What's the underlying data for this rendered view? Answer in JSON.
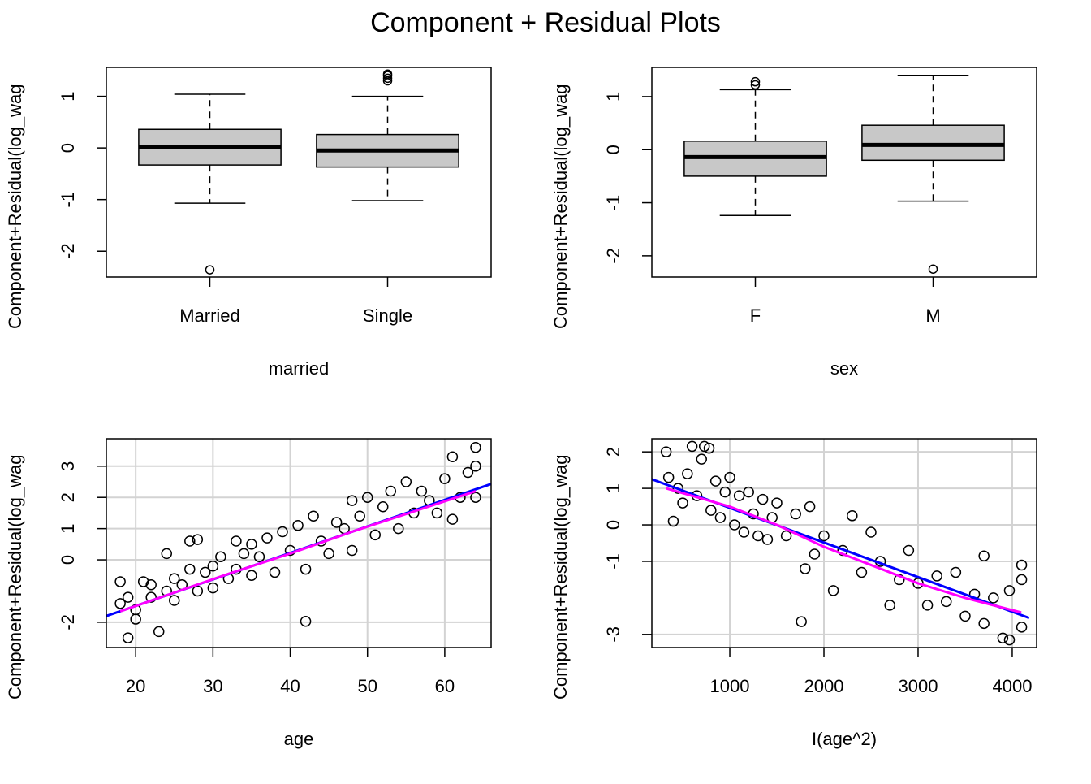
{
  "title": "Component + Residual Plots",
  "chart_data": [
    {
      "type": "box",
      "ylabel": "Component+Residual(log_wag",
      "xlabel": "married",
      "categories": [
        "Married",
        "Single"
      ],
      "fill": "#c8c8c8",
      "whisker_low": [
        -1.07,
        -1.02
      ],
      "q1": [
        -0.33,
        -0.37
      ],
      "median": [
        0.02,
        -0.05
      ],
      "q3": [
        0.36,
        0.26
      ],
      "whisker_high": [
        1.04,
        1.0
      ],
      "outliers": [
        [
          -2.36
        ],
        [
          1.3,
          1.35,
          1.4,
          1.43
        ]
      ],
      "ylim": [
        -2.5,
        1.56
      ],
      "yticks": [
        -2,
        -1,
        0,
        1
      ]
    },
    {
      "type": "box",
      "ylabel": "Component+Residual(log_wag",
      "xlabel": "sex",
      "categories": [
        "F",
        "M"
      ],
      "fill": "#c8c8c8",
      "whisker_low": [
        -1.24,
        -0.97
      ],
      "q1": [
        -0.5,
        -0.2
      ],
      "median": [
        -0.14,
        0.09
      ],
      "q3": [
        0.16,
        0.46
      ],
      "whisker_high": [
        1.13,
        1.4
      ],
      "outliers": [
        [
          1.22,
          1.28
        ],
        [
          -2.25
        ]
      ],
      "ylim": [
        -2.4,
        1.55
      ],
      "yticks": [
        -2,
        -1,
        0,
        1
      ]
    },
    {
      "type": "scatter",
      "ylabel": "Component+Residual(log_wag",
      "xlabel": "age",
      "grid": true,
      "xlim": [
        16.2,
        66
      ],
      "xticks": [
        20,
        30,
        40,
        50,
        60
      ],
      "ylim": [
        -2.81,
        3.88
      ],
      "yticks": [
        -2,
        0,
        1,
        2,
        3
      ],
      "series": [
        {
          "mode": "points",
          "color": "#000000",
          "x": [
            18,
            18,
            19,
            19,
            20,
            20,
            21,
            22,
            22,
            23,
            24,
            24,
            25,
            25,
            26,
            27,
            27,
            28,
            28,
            29,
            30,
            30,
            31,
            32,
            33,
            33,
            34,
            35,
            35,
            36,
            37,
            38,
            39,
            40,
            41,
            42,
            42,
            43,
            44,
            45,
            46,
            47,
            48,
            48,
            49,
            50,
            51,
            52,
            53,
            54,
            55,
            56,
            57,
            58,
            59,
            60,
            61,
            61,
            62,
            63,
            64,
            64,
            64
          ],
          "values": [
            -0.7,
            -1.4,
            -2.5,
            -1.2,
            -1.6,
            -1.9,
            -0.7,
            -1.2,
            -0.8,
            -2.3,
            0.2,
            -1.0,
            -0.6,
            -1.3,
            -0.8,
            0.6,
            -0.3,
            0.65,
            -1.0,
            -0.4,
            -0.9,
            -0.2,
            0.1,
            -0.6,
            0.6,
            -0.3,
            0.2,
            -0.5,
            0.5,
            0.1,
            0.7,
            -0.4,
            0.9,
            0.3,
            1.1,
            -1.97,
            -0.3,
            1.4,
            0.6,
            0.2,
            1.2,
            1.0,
            1.9,
            0.3,
            1.4,
            2.0,
            0.8,
            1.7,
            2.2,
            1.0,
            2.5,
            1.5,
            2.2,
            1.9,
            1.5,
            2.6,
            3.3,
            1.3,
            2.0,
            2.8,
            3.6,
            2.0,
            3.0
          ]
        },
        {
          "mode": "line",
          "color": "#0000ff",
          "x": [
            16.2,
            66
          ],
          "values": [
            -1.8,
            2.43
          ]
        },
        {
          "mode": "line",
          "color": "#ff00ff",
          "x": [
            18,
            25,
            32,
            40,
            48,
            56,
            64
          ],
          "values": [
            -1.65,
            -1.05,
            -0.45,
            0.2,
            0.9,
            1.55,
            2.2
          ]
        }
      ]
    },
    {
      "type": "scatter",
      "ylabel": "Component+Residual(log_wag",
      "xlabel": "I(age^2)",
      "grid": true,
      "xlim": [
        172,
        4259
      ],
      "xticks": [
        1000,
        2000,
        3000,
        4000
      ],
      "ylim": [
        -3.36,
        2.36
      ],
      "yticks": [
        -3,
        -1,
        0,
        1,
        2
      ],
      "series": [
        {
          "mode": "points",
          "color": "#000000",
          "x": [
            324,
            350,
            400,
            450,
            500,
            550,
            600,
            650,
            700,
            730,
            780,
            800,
            850,
            900,
            950,
            1000,
            1050,
            1100,
            1150,
            1200,
            1250,
            1300,
            1350,
            1400,
            1450,
            1500,
            1600,
            1700,
            1760,
            1800,
            1850,
            1900,
            2000,
            2100,
            2200,
            2300,
            2400,
            2500,
            2600,
            2700,
            2800,
            2900,
            3000,
            3100,
            3200,
            3300,
            3400,
            3500,
            3600,
            3700,
            3700,
            3800,
            3900,
            3970,
            3970,
            4100,
            4100,
            4100
          ],
          "values": [
            2.0,
            1.3,
            0.1,
            1.0,
            0.6,
            1.4,
            2.15,
            0.8,
            1.8,
            2.15,
            2.1,
            0.4,
            1.2,
            0.2,
            0.9,
            1.3,
            0.0,
            0.8,
            -0.2,
            0.9,
            0.3,
            -0.3,
            0.7,
            -0.4,
            0.2,
            0.6,
            -0.3,
            0.3,
            -2.65,
            -1.2,
            0.5,
            -0.8,
            -0.3,
            -1.8,
            -0.7,
            0.25,
            -1.3,
            -0.2,
            -1.0,
            -2.2,
            -1.5,
            -0.7,
            -1.6,
            -2.2,
            -1.4,
            -2.1,
            -1.3,
            -2.5,
            -1.9,
            -0.85,
            -2.7,
            -2.0,
            -3.1,
            -1.8,
            -3.15,
            -1.1,
            -2.8,
            -1.5
          ]
        },
        {
          "mode": "line",
          "color": "#0000ff",
          "x": [
            172,
            4180
          ],
          "values": [
            1.25,
            -2.55
          ]
        },
        {
          "mode": "line",
          "color": "#ff00ff",
          "x": [
            324,
            1000,
            1500,
            2000,
            2500,
            3000,
            3500,
            4096
          ],
          "values": [
            1.0,
            0.5,
            0.0,
            -0.6,
            -1.1,
            -1.6,
            -2.0,
            -2.4
          ]
        }
      ]
    }
  ]
}
